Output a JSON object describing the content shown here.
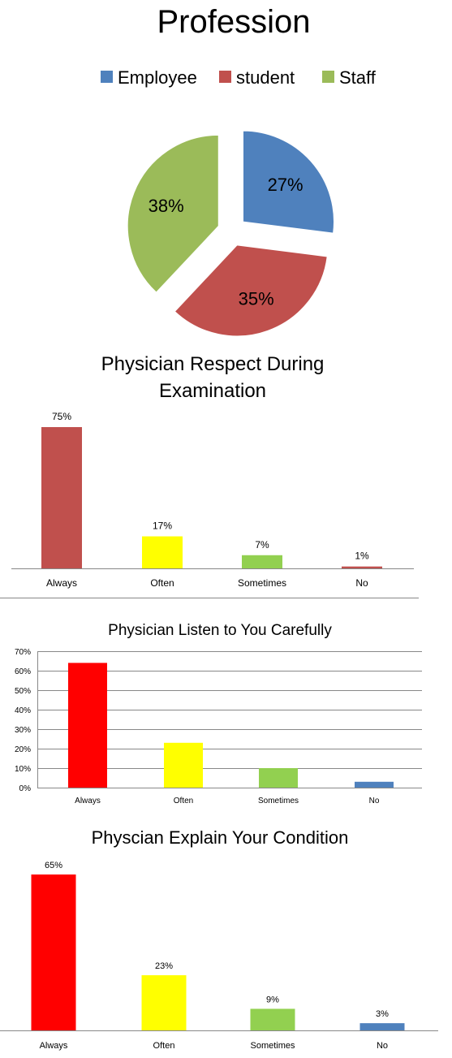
{
  "chart_data": [
    {
      "type": "pie",
      "title": "Profession",
      "legend_position": "top",
      "categories": [
        "Employee",
        "student",
        "Staff"
      ],
      "values": [
        27,
        35,
        38
      ],
      "labels": [
        "27%",
        "35%",
        "38%"
      ],
      "colors": [
        "#4F81BD",
        "#C0504D",
        "#9BBB59"
      ],
      "exploded": true
    },
    {
      "type": "bar",
      "title": "Physician Respect During Examination",
      "title_lines": [
        "Physician Respect During",
        "Examination"
      ],
      "categories": [
        "Always",
        "Often",
        "Sometimes",
        "No"
      ],
      "values": [
        75,
        17,
        7,
        1
      ],
      "labels": [
        "75%",
        "17%",
        "7%",
        "1%"
      ],
      "colors": [
        "#C0504D",
        "#FFFF00",
        "#92D050",
        "#C0504D"
      ],
      "ylim": [
        0,
        75
      ],
      "grid": false
    },
    {
      "type": "bar",
      "title": "Physician Listen to You Carefully",
      "categories": [
        "Always",
        "Often",
        "Sometimes",
        "No"
      ],
      "values": [
        64,
        23,
        10,
        3
      ],
      "colors": [
        "#FF0000",
        "#FFFF00",
        "#92D050",
        "#4F81BD"
      ],
      "ylim": [
        0,
        70
      ],
      "yticks": [
        0,
        10,
        20,
        30,
        40,
        50,
        60,
        70
      ],
      "ytick_labels": [
        "0%",
        "10%",
        "20%",
        "30%",
        "40%",
        "50%",
        "60%",
        "70%"
      ],
      "grid": true
    },
    {
      "type": "bar",
      "title": "Physcian Explain Your Condition",
      "categories": [
        "Always",
        "Often",
        "Sometimes",
        "No"
      ],
      "values": [
        65,
        23,
        9,
        3
      ],
      "labels": [
        "65%",
        "23%",
        "9%",
        "3%"
      ],
      "colors": [
        "#FF0000",
        "#FFFF00",
        "#92D050",
        "#4F81BD"
      ],
      "ylim": [
        0,
        65
      ],
      "grid": false
    }
  ]
}
